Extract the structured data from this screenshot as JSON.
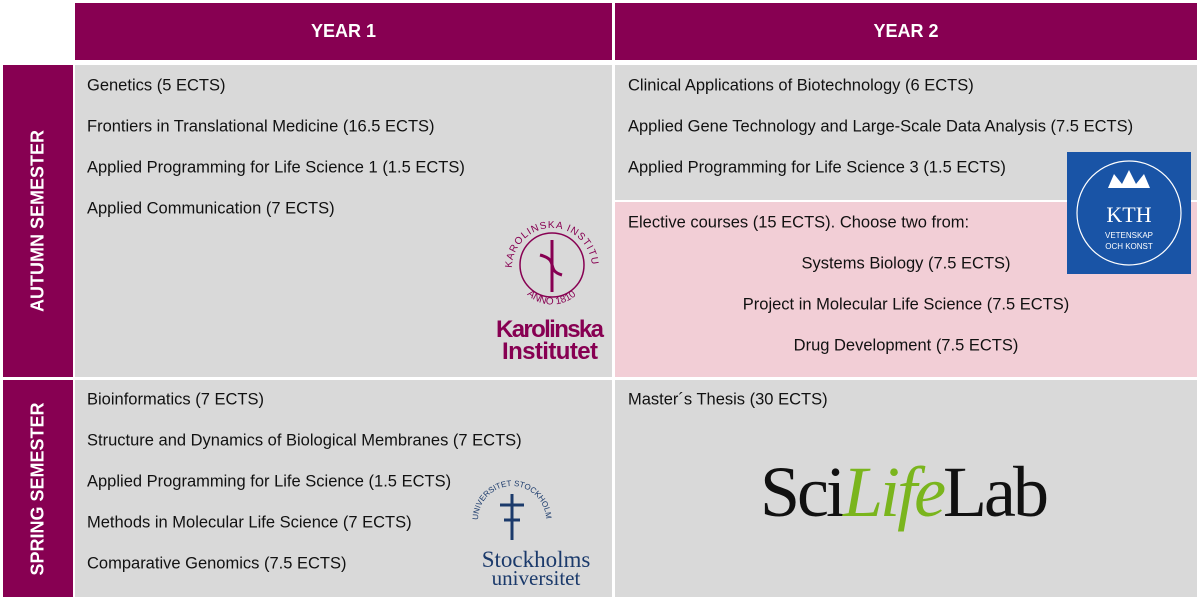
{
  "header": {
    "columns": [
      "YEAR 1",
      "YEAR 2"
    ]
  },
  "autumn": {
    "label": "AUTUMN SEMESTER",
    "year1": [
      "Genetics (5 ECTS)",
      "Frontiers in Translational Medicine (16.5 ECTS)",
      "Applied Programming for Life Science 1 (1.5 ECTS)",
      "Applied Communication (7 ECTS)"
    ],
    "year2": [
      "Clinical Applications of Biotechnology (6 ECTS)",
      "Applied Gene Technology and Large-Scale Data Analysis (7.5 ECTS)",
      "Applied Programming for Life Science 3 (1.5 ECTS)"
    ],
    "electives": {
      "title": "Elective courses (15 ECTS). Choose two from:",
      "courses": [
        "Systems Biology (7.5 ECTS)",
        "Project in Molecular Life Science (7.5 ECTS)",
        "Drug Development (7.5 ECTS)"
      ]
    }
  },
  "spring": {
    "label": "SPRING SEMESTER",
    "year1": [
      "Bioinformatics (7 ECTS)",
      "Structure and Dynamics of Biological Membranes (7 ECTS)",
      "Applied Programming for Life Science (1.5 ECTS)",
      "Methods in Molecular Life Science (7 ECTS)",
      "Comparative Genomics (7.5 ECTS)"
    ],
    "year2": [
      "Master´s Thesis (30 ECTS)"
    ]
  },
  "logos": {
    "karolinska": {
      "seal_top": "KAROLINSKA INSTITUTET",
      "seal_bottom": "ANNO 1810",
      "line1": "Karolinska",
      "line2": "Institutet"
    },
    "kth": {
      "name": "KTH",
      "line1": "VETENSKAP",
      "line2": "OCH KONST"
    },
    "stockholm": {
      "seal": "UNIVERSITET STOCKHOLMS",
      "line1": "Stockholms",
      "line2": "universitet"
    },
    "scilifelab": {
      "part1": "Sci",
      "part2": "Life",
      "part3": "Lab"
    }
  }
}
